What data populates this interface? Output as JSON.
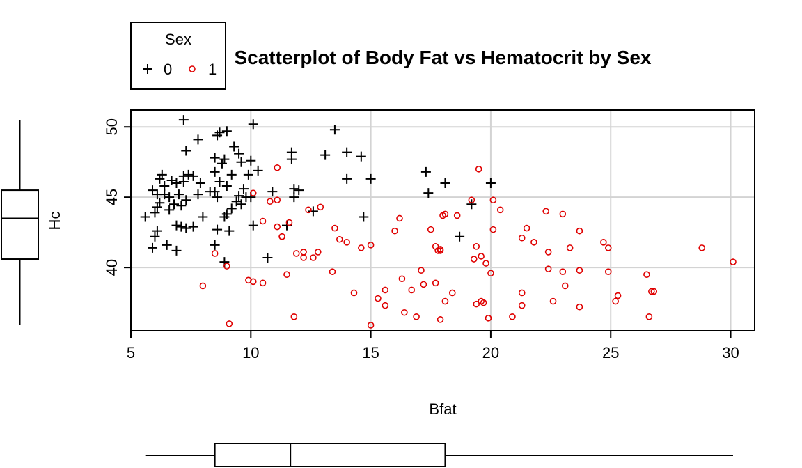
{
  "chart_data": {
    "type": "scatter",
    "title": "Scatterplot of Body Fat vs Hematocrit by Sex",
    "xlabel": "Bfat",
    "ylabel": "Hc",
    "xlim": [
      5,
      31
    ],
    "ylim": [
      35.5,
      51.2
    ],
    "xticks": [
      5,
      10,
      15,
      20,
      25,
      30
    ],
    "yticks": [
      40,
      45,
      50
    ],
    "grid": true,
    "legend": {
      "title": "Sex",
      "position": "top-left",
      "entries": [
        {
          "label": "0",
          "symbol": "plus",
          "color": "#000000"
        },
        {
          "label": "1",
          "symbol": "circle",
          "color": "#DF0000"
        }
      ]
    },
    "series": [
      {
        "name": "0",
        "symbol": "plus",
        "color": "#000000",
        "points": [
          [
            5.6,
            43.6
          ],
          [
            5.9,
            41.4
          ],
          [
            6.0,
            42.2
          ],
          [
            6.1,
            42.6
          ],
          [
            6.0,
            43.9
          ],
          [
            6.1,
            44.3
          ],
          [
            6.2,
            44.6
          ],
          [
            5.9,
            45.5
          ],
          [
            6.1,
            45.2
          ],
          [
            6.2,
            46.3
          ],
          [
            6.3,
            46.6
          ],
          [
            6.4,
            45.8
          ],
          [
            6.4,
            45.2
          ],
          [
            6.6,
            45.0
          ],
          [
            6.5,
            41.6
          ],
          [
            6.6,
            44.1
          ],
          [
            6.8,
            44.5
          ],
          [
            6.7,
            46.2
          ],
          [
            6.9,
            46.0
          ],
          [
            6.9,
            41.2
          ],
          [
            6.9,
            43.0
          ],
          [
            7.1,
            42.9
          ],
          [
            7.0,
            45.2
          ],
          [
            7.1,
            44.4
          ],
          [
            7.3,
            44.8
          ],
          [
            7.3,
            42.8
          ],
          [
            7.2,
            46.1
          ],
          [
            7.2,
            46.5
          ],
          [
            7.3,
            48.3
          ],
          [
            7.4,
            46.6
          ],
          [
            7.6,
            46.5
          ],
          [
            7.6,
            42.9
          ],
          [
            7.8,
            45.2
          ],
          [
            7.9,
            46.0
          ],
          [
            8.0,
            43.6
          ],
          [
            7.2,
            50.5
          ],
          [
            7.8,
            49.1
          ],
          [
            8.3,
            45.4
          ],
          [
            8.5,
            45.4
          ],
          [
            8.5,
            46.8
          ],
          [
            8.5,
            47.8
          ],
          [
            8.6,
            42.7
          ],
          [
            8.5,
            41.6
          ],
          [
            8.6,
            45.0
          ],
          [
            8.6,
            49.4
          ],
          [
            8.7,
            49.6
          ],
          [
            8.8,
            47.4
          ],
          [
            8.7,
            46.1
          ],
          [
            8.9,
            47.7
          ],
          [
            8.9,
            43.6
          ],
          [
            8.9,
            40.4
          ],
          [
            9.0,
            43.8
          ],
          [
            9.0,
            49.7
          ],
          [
            9.1,
            42.6
          ],
          [
            9.0,
            45.8
          ],
          [
            9.2,
            44.2
          ],
          [
            9.2,
            46.6
          ],
          [
            9.3,
            48.6
          ],
          [
            9.4,
            44.7
          ],
          [
            9.5,
            48.1
          ],
          [
            9.5,
            45.1
          ],
          [
            9.6,
            47.5
          ],
          [
            9.6,
            44.5
          ],
          [
            9.7,
            45.6
          ],
          [
            9.8,
            45.0
          ],
          [
            9.9,
            46.6
          ],
          [
            10.0,
            47.6
          ],
          [
            10.0,
            45.0
          ],
          [
            10.1,
            43.0
          ],
          [
            10.1,
            50.2
          ],
          [
            10.3,
            46.9
          ],
          [
            10.7,
            40.7
          ],
          [
            10.9,
            45.4
          ],
          [
            11.5,
            43.0
          ],
          [
            11.7,
            47.7
          ],
          [
            11.8,
            45.0
          ],
          [
            11.7,
            48.2
          ],
          [
            11.8,
            45.6
          ],
          [
            12.0,
            45.5
          ],
          [
            12.6,
            44.0
          ],
          [
            13.1,
            48.0
          ],
          [
            13.5,
            49.8
          ],
          [
            14.0,
            48.2
          ],
          [
            14.0,
            46.3
          ],
          [
            14.6,
            47.9
          ],
          [
            14.7,
            43.6
          ],
          [
            15.0,
            46.3
          ],
          [
            17.3,
            46.8
          ],
          [
            17.4,
            45.3
          ],
          [
            18.1,
            46.0
          ],
          [
            18.7,
            42.2
          ],
          [
            19.2,
            44.5
          ],
          [
            20.0,
            46.0
          ]
        ]
      },
      {
        "name": "1",
        "symbol": "circle",
        "color": "#DF0000",
        "points": [
          [
            8.0,
            38.7
          ],
          [
            8.5,
            41.0
          ],
          [
            9.0,
            40.1
          ],
          [
            9.1,
            36.0
          ],
          [
            9.9,
            39.1
          ],
          [
            10.1,
            39.0
          ],
          [
            10.1,
            45.3
          ],
          [
            10.5,
            38.9
          ],
          [
            10.5,
            43.3
          ],
          [
            10.8,
            44.7
          ],
          [
            11.1,
            44.8
          ],
          [
            11.1,
            47.1
          ],
          [
            11.1,
            42.9
          ],
          [
            11.3,
            42.2
          ],
          [
            11.3,
            42.2
          ],
          [
            11.5,
            39.5
          ],
          [
            11.6,
            43.2
          ],
          [
            11.8,
            36.5
          ],
          [
            11.9,
            41.0
          ],
          [
            12.2,
            40.7
          ],
          [
            12.2,
            41.1
          ],
          [
            12.4,
            44.1
          ],
          [
            12.6,
            40.7
          ],
          [
            12.8,
            41.1
          ],
          [
            12.9,
            44.3
          ],
          [
            13.4,
            39.7
          ],
          [
            13.5,
            42.8
          ],
          [
            13.7,
            42.0
          ],
          [
            14.0,
            41.8
          ],
          [
            14.3,
            38.2
          ],
          [
            14.6,
            41.4
          ],
          [
            15.0,
            41.6
          ],
          [
            15.0,
            35.9
          ],
          [
            15.3,
            37.8
          ],
          [
            15.6,
            38.4
          ],
          [
            15.6,
            37.3
          ],
          [
            16.0,
            42.6
          ],
          [
            16.3,
            39.2
          ],
          [
            16.2,
            43.5
          ],
          [
            16.4,
            36.8
          ],
          [
            16.7,
            38.4
          ],
          [
            16.9,
            36.5
          ],
          [
            17.1,
            39.8
          ],
          [
            17.2,
            38.8
          ],
          [
            17.5,
            42.7
          ],
          [
            17.7,
            38.9
          ],
          [
            17.7,
            41.5
          ],
          [
            17.8,
            41.2
          ],
          [
            17.9,
            41.3
          ],
          [
            17.9,
            41.2
          ],
          [
            17.9,
            36.3
          ],
          [
            18.0,
            43.7
          ],
          [
            18.1,
            43.8
          ],
          [
            18.1,
            37.6
          ],
          [
            18.4,
            38.2
          ],
          [
            18.6,
            43.7
          ],
          [
            19.2,
            44.8
          ],
          [
            19.3,
            40.6
          ],
          [
            19.4,
            41.5
          ],
          [
            19.4,
            37.4
          ],
          [
            19.5,
            47.0
          ],
          [
            19.6,
            37.6
          ],
          [
            19.6,
            40.8
          ],
          [
            19.7,
            37.5
          ],
          [
            19.8,
            40.3
          ],
          [
            19.9,
            36.4
          ],
          [
            20.0,
            39.6
          ],
          [
            20.1,
            42.7
          ],
          [
            20.1,
            44.8
          ],
          [
            20.4,
            44.1
          ],
          [
            20.9,
            36.5
          ],
          [
            21.3,
            42.1
          ],
          [
            21.3,
            38.2
          ],
          [
            21.3,
            37.3
          ],
          [
            21.5,
            42.8
          ],
          [
            21.8,
            41.8
          ],
          [
            22.3,
            44.0
          ],
          [
            22.4,
            41.1
          ],
          [
            22.4,
            39.9
          ],
          [
            22.6,
            37.6
          ],
          [
            23.0,
            43.8
          ],
          [
            23.0,
            39.7
          ],
          [
            23.1,
            38.7
          ],
          [
            23.3,
            41.4
          ],
          [
            23.7,
            42.6
          ],
          [
            23.7,
            39.8
          ],
          [
            23.7,
            37.2
          ],
          [
            24.7,
            41.8
          ],
          [
            24.9,
            39.7
          ],
          [
            24.9,
            41.4
          ],
          [
            25.2,
            37.6
          ],
          [
            25.3,
            38.0
          ],
          [
            26.5,
            39.5
          ],
          [
            26.6,
            36.5
          ],
          [
            26.7,
            38.3
          ],
          [
            26.8,
            38.3
          ],
          [
            28.8,
            41.4
          ],
          [
            30.1,
            40.4
          ]
        ]
      }
    ],
    "marginal_boxplots": {
      "x": {
        "min": 5.6,
        "q1": 8.5,
        "median": 11.65,
        "q3": 18.1,
        "max": 30.1
      },
      "y": {
        "min": 35.9,
        "q1": 40.6,
        "median": 43.5,
        "q3": 45.5,
        "max": 50.5
      }
    }
  }
}
